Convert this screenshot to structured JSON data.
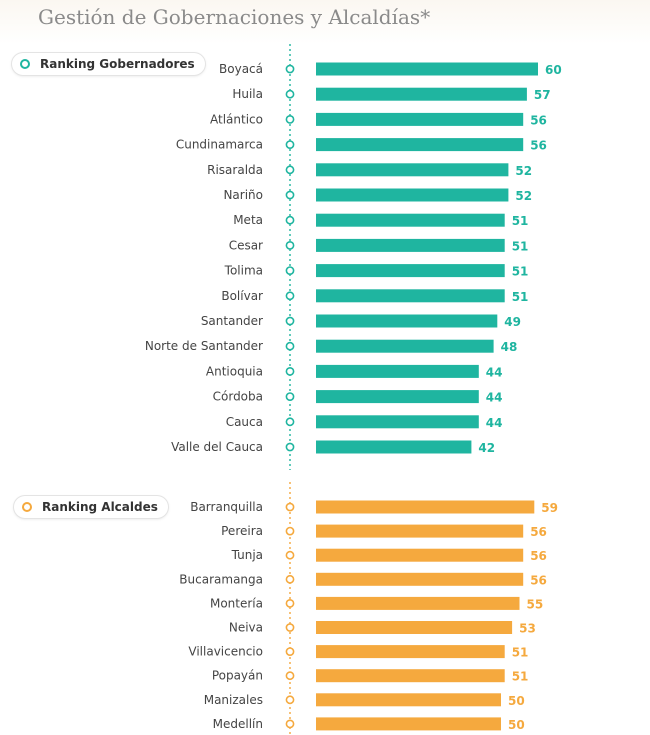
{
  "title": "Gestión de Gobernaciones y Alcaldías*",
  "colors": {
    "gobernadores": "#1fb5a0",
    "alcaldes": "#f5a93e",
    "category_text": "#444444"
  },
  "chart_data": [
    {
      "type": "bar",
      "orientation": "horizontal",
      "title": "Ranking Gobernadores",
      "categories": [
        "Boyacá",
        "Huila",
        "Atlántico",
        "Cundinamarca",
        "Risaralda",
        "Nariño",
        "Meta",
        "Cesar",
        "Tolima",
        "Bolívar",
        "Santander",
        "Norte de Santander",
        "Antioquia",
        "Córdoba",
        "Cauca",
        "Valle del Cauca"
      ],
      "values": [
        60,
        57,
        56,
        56,
        52,
        52,
        51,
        51,
        51,
        51,
        49,
        48,
        44,
        44,
        44,
        42
      ],
      "xlim": [
        0,
        60
      ],
      "grid": false,
      "data_labels": true
    },
    {
      "type": "bar",
      "orientation": "horizontal",
      "title": "Ranking Alcaldes",
      "categories": [
        "Barranquilla",
        "Pereira",
        "Tunja",
        "Bucaramanga",
        "Montería",
        "Neiva",
        "Villavicencio",
        "Popayán",
        "Manizales",
        "Medellín"
      ],
      "values": [
        59,
        56,
        56,
        56,
        55,
        53,
        51,
        51,
        50,
        50
      ],
      "xlim": [
        0,
        60
      ],
      "grid": false,
      "data_labels": true
    }
  ]
}
